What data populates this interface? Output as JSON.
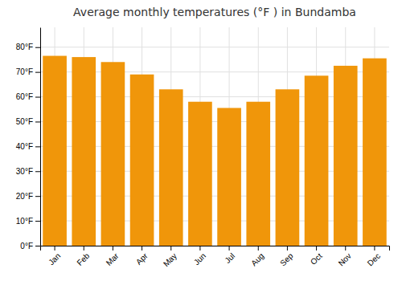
{
  "chart_data": {
    "type": "bar",
    "title": "Average monthly temperatures (°F ) in Bundamba",
    "categories": [
      "Jan",
      "Feb",
      "Mar",
      "Apr",
      "May",
      "Jun",
      "Jul",
      "Aug",
      "Sep",
      "Oct",
      "Nov",
      "Dec"
    ],
    "values": [
      76.5,
      76.0,
      74.0,
      69.0,
      63.0,
      58.0,
      55.5,
      58.0,
      63.0,
      68.5,
      72.5,
      75.5
    ],
    "color": "#F0960A",
    "ylim": [
      0,
      88
    ],
    "yticks": [
      {
        "value": 0,
        "label": "0°F"
      },
      {
        "value": 10,
        "label": "10°F"
      },
      {
        "value": 20,
        "label": "20°F"
      },
      {
        "value": 30,
        "label": "30°F"
      },
      {
        "value": 40,
        "label": "40°F"
      },
      {
        "value": 50,
        "label": "50°F"
      },
      {
        "value": 60,
        "label": "60°F"
      },
      {
        "value": 70,
        "label": "70°F"
      },
      {
        "value": 80,
        "label": "80°F"
      }
    ],
    "grid": true
  }
}
